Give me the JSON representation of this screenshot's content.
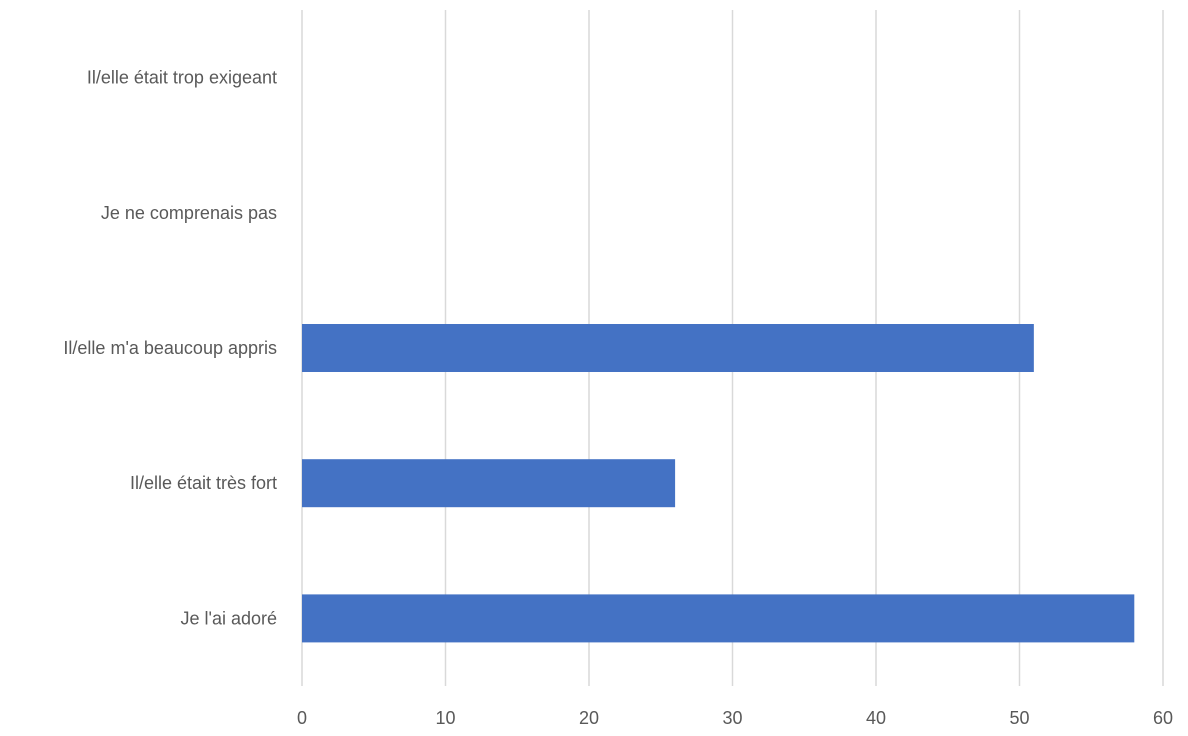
{
  "chart_data": {
    "type": "bar",
    "orientation": "horizontal",
    "categories": [
      "Il/elle était trop exigeant",
      "Je ne comprenais pas",
      "Il/elle m'a beaucoup appris",
      "Il/elle était très fort",
      "Je l'ai adoré"
    ],
    "values": [
      0,
      0,
      51,
      26,
      58
    ],
    "xlim": [
      0,
      60
    ],
    "xticks": [
      0,
      10,
      20,
      30,
      40,
      50,
      60
    ],
    "grid": true,
    "legend": "none",
    "colors": {
      "bar": "#4472C4",
      "grid": "#D9D9D9",
      "text": "#595959"
    }
  }
}
